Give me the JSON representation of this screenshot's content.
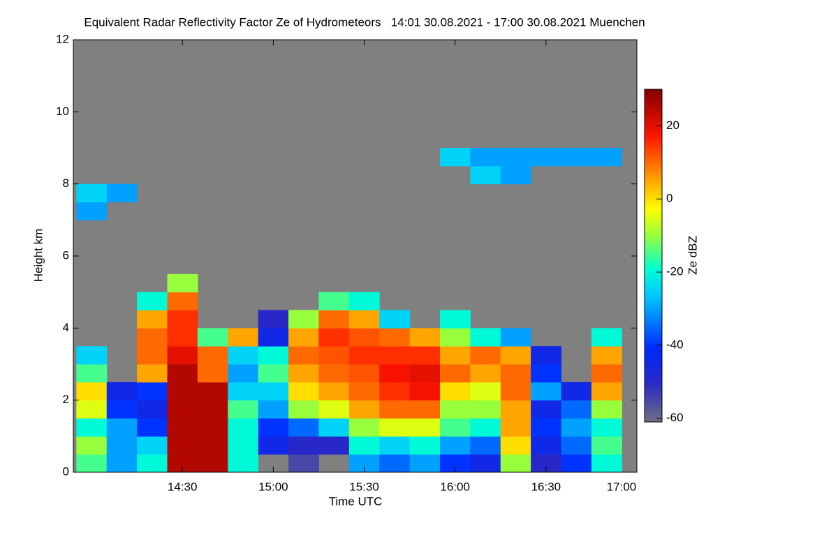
{
  "chart_data": {
    "type": "heatmap",
    "title": "Equivalent Radar Reflectivity Factor Ze of Hydrometeors   14:01 30.08.2021 - 17:00 30.08.2021 Muenchen",
    "x_label": "Time UTC",
    "y_label": "Height km",
    "colorbar_label": "Ze dBZ",
    "xlim": [
      834,
      1020
    ],
    "xticks": [
      {
        "value": 870,
        "label": "14:30"
      },
      {
        "value": 900,
        "label": "15:00"
      },
      {
        "value": 930,
        "label": "15:30"
      },
      {
        "value": 960,
        "label": "16:00"
      },
      {
        "value": 990,
        "label": "16:30"
      },
      {
        "value": 1020,
        "label": "17:00"
      }
    ],
    "ylim": [
      0,
      12
    ],
    "yticks": [
      0,
      2,
      4,
      6,
      8,
      10,
      12
    ],
    "clim": [
      -61,
      30
    ],
    "cticks": [
      -60,
      -40,
      -20,
      0,
      20
    ],
    "x": [
      840,
      850,
      860,
      870,
      880,
      890,
      900,
      910,
      920,
      930,
      940,
      950,
      960,
      970,
      980,
      990,
      1000,
      1010
    ],
    "y": [
      0.25,
      0.75,
      1.25,
      1.75,
      2.25,
      2.75,
      3.25,
      3.75,
      4.25,
      4.75,
      5.25,
      5.75,
      6.25,
      6.75,
      7.25,
      7.75,
      8.25,
      8.75
    ],
    "z": [
      [
        -15,
        -30,
        -20,
        25,
        25,
        -20,
        null,
        -55,
        null,
        -30,
        -35,
        -30,
        -40,
        -45,
        -10,
        -50,
        -40,
        -20
      ],
      [
        -10,
        -30,
        -25,
        25,
        25,
        -20,
        -45,
        -50,
        -50,
        -20,
        -25,
        -20,
        -30,
        -35,
        0,
        -45,
        -35,
        -15
      ],
      [
        -20,
        -30,
        -40,
        25,
        25,
        -20,
        -40,
        -35,
        -25,
        -10,
        -5,
        -5,
        -15,
        -20,
        5,
        -40,
        -30,
        -20
      ],
      [
        -5,
        -40,
        -45,
        25,
        25,
        -15,
        -30,
        -10,
        -5,
        5,
        10,
        10,
        -10,
        -10,
        5,
        -45,
        -35,
        -10
      ],
      [
        0,
        -45,
        -40,
        25,
        25,
        -25,
        -25,
        0,
        5,
        10,
        15,
        18,
        0,
        -5,
        10,
        -30,
        -45,
        5
      ],
      [
        -15,
        null,
        5,
        25,
        10,
        -30,
        -15,
        5,
        10,
        12,
        18,
        20,
        10,
        5,
        10,
        -40,
        null,
        10
      ],
      [
        -25,
        null,
        10,
        20,
        10,
        -25,
        -20,
        10,
        12,
        15,
        15,
        15,
        5,
        10,
        5,
        -45,
        null,
        5
      ],
      [
        null,
        null,
        10,
        15,
        -15,
        5,
        -45,
        5,
        15,
        12,
        10,
        5,
        -10,
        -20,
        -30,
        null,
        null,
        -20
      ],
      [
        null,
        null,
        5,
        15,
        null,
        null,
        -50,
        -10,
        10,
        5,
        -25,
        null,
        -20,
        null,
        null,
        null,
        null,
        null
      ],
      [
        null,
        null,
        -20,
        10,
        null,
        null,
        null,
        null,
        -15,
        -20,
        null,
        null,
        null,
        null,
        null,
        null,
        null,
        null
      ],
      [
        null,
        null,
        null,
        -10,
        null,
        null,
        null,
        null,
        null,
        null,
        null,
        null,
        null,
        null,
        null,
        null,
        null,
        null
      ],
      [
        null,
        null,
        null,
        null,
        null,
        null,
        null,
        null,
        null,
        null,
        null,
        null,
        null,
        null,
        null,
        null,
        null,
        null
      ],
      [
        null,
        null,
        null,
        null,
        null,
        null,
        null,
        null,
        null,
        null,
        null,
        null,
        null,
        null,
        null,
        null,
        null,
        null
      ],
      [
        null,
        null,
        null,
        null,
        null,
        null,
        null,
        null,
        null,
        null,
        null,
        null,
        null,
        null,
        null,
        null,
        null,
        null
      ],
      [
        -30,
        null,
        null,
        null,
        null,
        null,
        null,
        null,
        null,
        null,
        null,
        null,
        null,
        null,
        null,
        null,
        null,
        null
      ],
      [
        -25,
        -30,
        null,
        null,
        null,
        null,
        null,
        null,
        null,
        null,
        null,
        null,
        null,
        null,
        null,
        null,
        null,
        null
      ],
      [
        null,
        null,
        null,
        null,
        null,
        null,
        null,
        null,
        null,
        null,
        null,
        null,
        null,
        -25,
        -30,
        null,
        null,
        null
      ],
      [
        null,
        null,
        null,
        null,
        null,
        null,
        null,
        null,
        null,
        null,
        null,
        null,
        -25,
        -30,
        -30,
        -30,
        -30,
        -30
      ]
    ],
    "background_color": "#808080"
  }
}
